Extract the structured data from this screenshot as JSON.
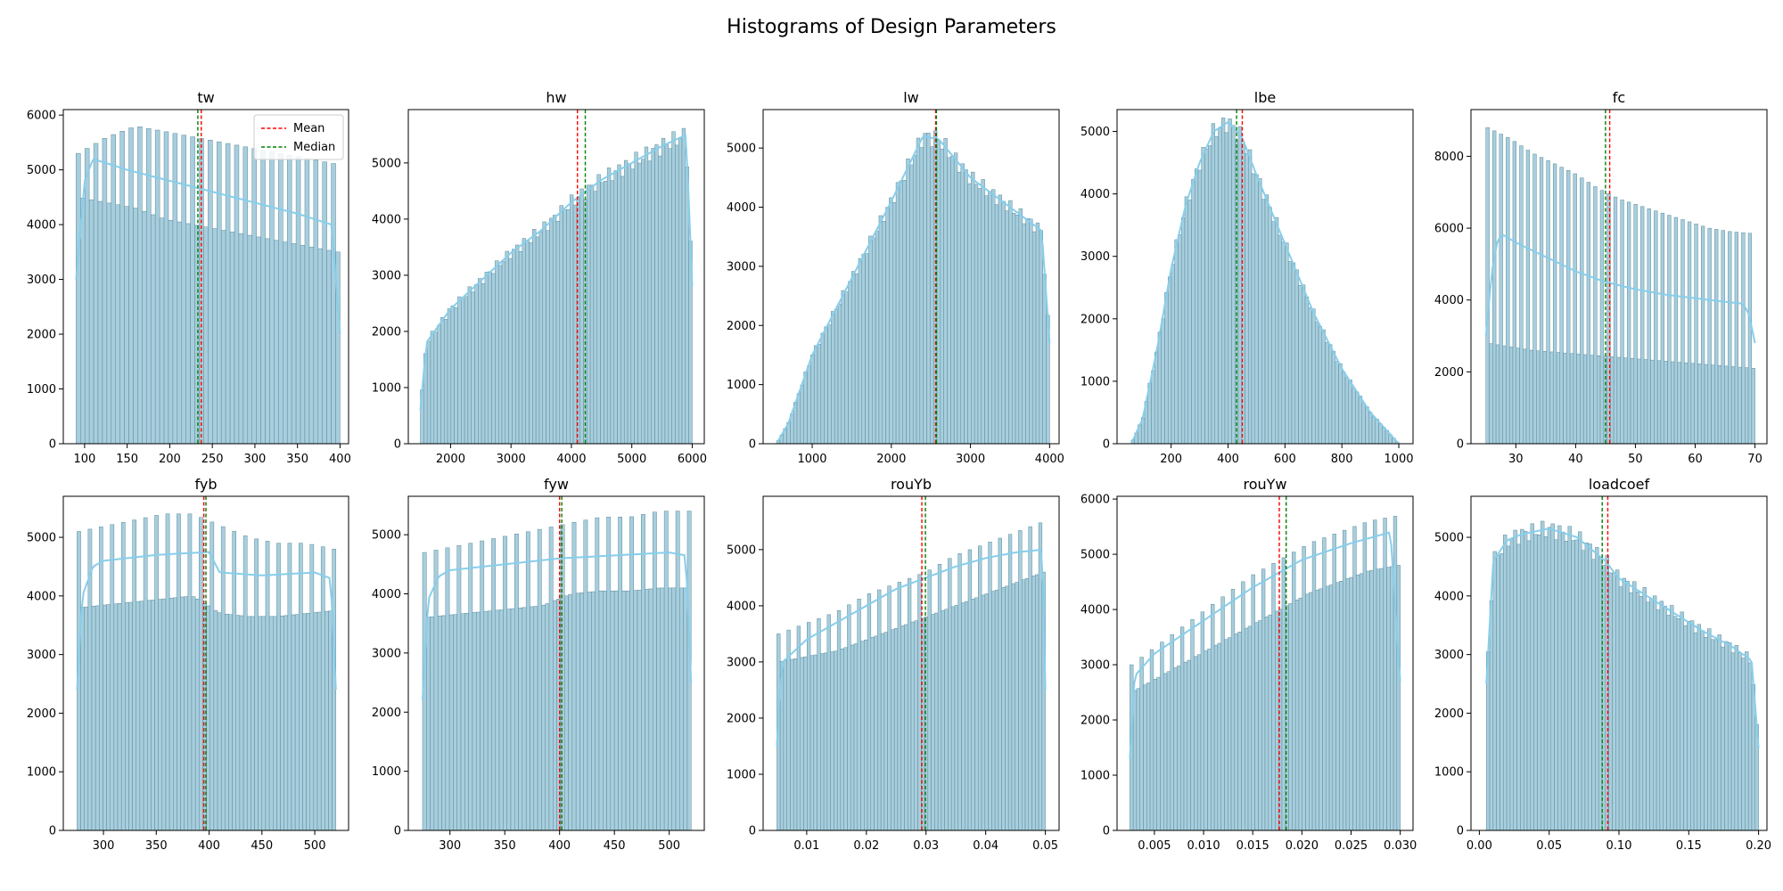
{
  "figure": {
    "title": "Histograms of Design Parameters"
  },
  "legend": {
    "mean_label": "Mean",
    "median_label": "Median"
  },
  "colors": {
    "bar_fill": "#a8cedd",
    "bar_edge": "#5a8a9a",
    "kde": "#87ceeb",
    "mean": "#ff0000",
    "median": "#008000"
  },
  "chart_data": [
    {
      "type": "bar",
      "title": "tw",
      "xlim": [
        75,
        410
      ],
      "ylim": [
        0,
        6100
      ],
      "xticks": [
        100,
        150,
        200,
        250,
        300,
        350,
        400
      ],
      "yticks": [
        0,
        1000,
        2000,
        3000,
        4000,
        5000,
        6000
      ],
      "range": [
        90,
        400
      ],
      "bins": 60,
      "mean": 237,
      "median": 233,
      "legend": "upper right",
      "profile": {
        "x": [
          90,
          100,
          110,
          150,
          200,
          250,
          300,
          350,
          390,
          400
        ],
        "y": [
          3000,
          4800,
          5200,
          5000,
          4800,
          4600,
          4400,
          4200,
          4000,
          2000
        ]
      },
      "hi": [
        5300,
        5600,
        5800,
        5700,
        5600,
        5500,
        5400,
        5300,
        5200,
        5100
      ],
      "lo": [
        4500,
        4400,
        4300,
        4100,
        4000,
        3900,
        3800,
        3700,
        3600,
        3500
      ],
      "split": 2
    },
    {
      "type": "bar",
      "title": "hw",
      "xlim": [
        1300,
        6200
      ],
      "ylim": [
        0,
        5950
      ],
      "xticks": [
        2000,
        3000,
        4000,
        5000,
        6000
      ],
      "yticks": [
        0,
        1000,
        2000,
        3000,
        4000,
        5000
      ],
      "range": [
        1500,
        6000
      ],
      "bins": 80,
      "mean": 4100,
      "median": 4230,
      "profile": {
        "x": [
          1500,
          1600,
          2000,
          2500,
          3000,
          3500,
          4000,
          4500,
          5000,
          5500,
          5900,
          6000
        ],
        "y": [
          600,
          1800,
          2400,
          2900,
          3400,
          3800,
          4300,
          4700,
          5000,
          5300,
          5500,
          2800
        ]
      }
    },
    {
      "type": "bar",
      "title": "lw",
      "xlim": [
        380,
        4120
      ],
      "ylim": [
        0,
        5650
      ],
      "xticks": [
        1000,
        2000,
        3000,
        4000
      ],
      "yticks": [
        0,
        1000,
        2000,
        3000,
        4000,
        5000
      ],
      "range": [
        550,
        4000
      ],
      "bins": 80,
      "mean": 2560,
      "median": 2570,
      "profile": {
        "x": [
          550,
          700,
          1000,
          1500,
          2000,
          2400,
          2600,
          3000,
          3500,
          3900,
          4000
        ],
        "y": [
          0,
          350,
          1500,
          2800,
          4100,
          5200,
          5150,
          4500,
          4000,
          3600,
          1700
        ]
      }
    },
    {
      "type": "bar",
      "title": "lbe",
      "xlim": [
        10,
        1050
      ],
      "ylim": [
        0,
        5350
      ],
      "xticks": [
        200,
        400,
        600,
        800,
        1000
      ],
      "yticks": [
        0,
        1000,
        2000,
        3000,
        4000,
        5000
      ],
      "range": [
        60,
        1000
      ],
      "bins": 80,
      "mean": 450,
      "median": 430,
      "profile": {
        "x": [
          60,
          100,
          150,
          200,
          250,
          300,
          350,
          400,
          450,
          500,
          600,
          700,
          800,
          900,
          1000
        ],
        "y": [
          0,
          400,
          1500,
          2800,
          3800,
          4500,
          5000,
          5150,
          4900,
          4300,
          3200,
          2100,
          1200,
          500,
          0
        ]
      }
    },
    {
      "type": "bar",
      "title": "fc",
      "xlim": [
        22.5,
        72
      ],
      "ylim": [
        0,
        9300
      ],
      "xticks": [
        30,
        40,
        50,
        60,
        70
      ],
      "yticks": [
        0,
        2000,
        4000,
        6000,
        8000
      ],
      "range": [
        25,
        70
      ],
      "bins": 80,
      "mean": 45.7,
      "median": 45,
      "profile": {
        "x": [
          25,
          26,
          27,
          28,
          30,
          35,
          40,
          45,
          50,
          55,
          60,
          65,
          68,
          69,
          70
        ],
        "y": [
          3000,
          4800,
          5700,
          5800,
          5600,
          5200,
          4800,
          4500,
          4300,
          4150,
          4050,
          3950,
          3900,
          3600,
          2800
        ]
      },
      "hi": [
        8800,
        8500,
        8100,
        7800,
        7500,
        7100,
        6800,
        6600,
        6400,
        6200,
        6000,
        5900,
        5850
      ],
      "lo": [
        2800,
        2700,
        2600,
        2550,
        2500,
        2450,
        2400,
        2350,
        2300,
        2250,
        2200,
        2150,
        2100
      ],
      "split": 2
    },
    {
      "type": "bar",
      "title": "fyb",
      "xlim": [
        262,
        532
      ],
      "ylim": [
        0,
        5700
      ],
      "xticks": [
        300,
        350,
        400,
        450,
        500
      ],
      "yticks": [
        0,
        1000,
        2000,
        3000,
        4000,
        5000
      ],
      "range": [
        275,
        520
      ],
      "bins": 70,
      "mean": 395,
      "median": 397,
      "profile": {
        "x": [
          275,
          280,
          290,
          300,
          350,
          400,
          410,
          450,
          500,
          515,
          520
        ],
        "y": [
          2400,
          4000,
          4500,
          4600,
          4700,
          4750,
          4400,
          4350,
          4400,
          4300,
          2400
        ]
      },
      "hi": [
        5100,
        5200,
        5300,
        5400,
        5400,
        5200,
        5000,
        4900,
        4900,
        4800
      ],
      "lo": [
        3800,
        3850,
        3900,
        3950,
        4000,
        3700,
        3650,
        3650,
        3700,
        3750
      ],
      "split": 3
    },
    {
      "type": "bar",
      "title": "fyw",
      "xlim": [
        262,
        532
      ],
      "ylim": [
        0,
        5650
      ],
      "xticks": [
        300,
        350,
        400,
        450,
        500
      ],
      "yticks": [
        0,
        1000,
        2000,
        3000,
        4000,
        5000
      ],
      "range": [
        275,
        520
      ],
      "bins": 70,
      "mean": 400,
      "median": 402,
      "profile": {
        "x": [
          275,
          280,
          290,
          300,
          350,
          400,
          450,
          500,
          515,
          520
        ],
        "y": [
          2200,
          3900,
          4300,
          4400,
          4500,
          4600,
          4650,
          4700,
          4650,
          2500
        ]
      },
      "hi": [
        4700,
        4800,
        4900,
        5000,
        5100,
        5200,
        5300,
        5300,
        5400,
        5400
      ],
      "lo": [
        3600,
        3650,
        3700,
        3750,
        3800,
        4000,
        4050,
        4050,
        4100,
        4100
      ],
      "split": 3
    },
    {
      "type": "bar",
      "title": "rouYb",
      "xlim": [
        0.0027,
        0.0523
      ],
      "ylim": [
        0,
        5950
      ],
      "xticks": [
        0.01,
        0.02,
        0.03,
        0.04,
        0.05
      ],
      "xtick_labels": [
        "0.01",
        "0.02",
        "0.03",
        "0.04",
        "0.05"
      ],
      "yticks": [
        0,
        1000,
        2000,
        3000,
        4000,
        5000
      ],
      "range": [
        0.005,
        0.05
      ],
      "bins": 80,
      "mean": 0.0293,
      "median": 0.0299,
      "profile": {
        "x": [
          0.005,
          0.0055,
          0.006,
          0.01,
          0.015,
          0.02,
          0.025,
          0.03,
          0.035,
          0.04,
          0.045,
          0.0495,
          0.05
        ],
        "y": [
          1500,
          2500,
          3000,
          3400,
          3700,
          4000,
          4300,
          4500,
          4700,
          4850,
          4950,
          5000,
          2500
        ]
      },
      "hi": [
        3500,
        3700,
        3900,
        4200,
        4400,
        4600,
        4900,
        5100,
        5300,
        5500
      ],
      "lo": [
        3000,
        3100,
        3200,
        3400,
        3600,
        3800,
        4000,
        4200,
        4400,
        4600
      ],
      "split": 3
    },
    {
      "type": "bar",
      "title": "rouYw",
      "xlim": [
        0.0012,
        0.0313
      ],
      "ylim": [
        0,
        6050
      ],
      "xticks": [
        0.005,
        0.01,
        0.015,
        0.02,
        0.025,
        0.03
      ],
      "xtick_labels": [
        "0.005",
        "0.010",
        "0.015",
        "0.020",
        "0.025",
        "0.030"
      ],
      "yticks": [
        0,
        1000,
        2000,
        3000,
        4000,
        5000,
        6000
      ],
      "range": [
        0.0025,
        0.03
      ],
      "bins": 80,
      "mean": 0.0177,
      "median": 0.0184,
      "profile": {
        "x": [
          0.0025,
          0.003,
          0.005,
          0.01,
          0.015,
          0.02,
          0.025,
          0.029,
          0.03
        ],
        "y": [
          1300,
          2800,
          3200,
          3800,
          4400,
          4900,
          5200,
          5400,
          2700
        ]
      },
      "hi": [
        3000,
        3400,
        3800,
        4200,
        4600,
        4900,
        5200,
        5400,
        5600,
        5700
      ],
      "lo": [
        2500,
        2800,
        3100,
        3400,
        3700,
        4000,
        4300,
        4500,
        4700,
        4800
      ],
      "split": 3
    },
    {
      "type": "bar",
      "title": "loadcoef",
      "xlim": [
        -0.006,
        0.206
      ],
      "ylim": [
        0,
        5700
      ],
      "xticks": [
        0.0,
        0.05,
        0.1,
        0.15,
        0.2
      ],
      "xtick_labels": [
        "0.00",
        "0.05",
        "0.10",
        "0.15",
        "0.20"
      ],
      "yticks": [
        0,
        1000,
        2000,
        3000,
        4000,
        5000
      ],
      "range": [
        0.005,
        0.2
      ],
      "bins": 80,
      "mean": 0.092,
      "median": 0.088,
      "profile": {
        "x": [
          0.005,
          0.01,
          0.02,
          0.03,
          0.05,
          0.07,
          0.09,
          0.1,
          0.12,
          0.14,
          0.16,
          0.18,
          0.195,
          0.2
        ],
        "y": [
          2500,
          4600,
          4950,
          5050,
          5150,
          5000,
          4600,
          4300,
          4000,
          3700,
          3400,
          3150,
          2900,
          1400
        ]
      }
    }
  ]
}
